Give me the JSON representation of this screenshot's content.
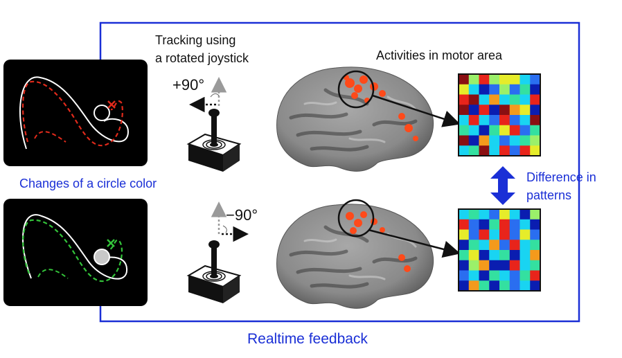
{
  "labels": {
    "tracking_line1": "Tracking using",
    "tracking_line2": "a rotated joystick",
    "activities": "Activities in motor area",
    "circle_color": "Changes of a circle color",
    "difference_line1": "Difference in",
    "difference_line2": "patterns",
    "realtime_feedback": "Realtime feedback",
    "angle_top": "+90°",
    "angle_bottom": "−90°"
  },
  "colors": {
    "feedback_loop": "#1a2fd6",
    "trace_top": "#e02a1b",
    "trace_bottom": "#33c43a",
    "cursor_top_fill": "#000000",
    "cursor_bottom_fill": "#c8c8c8"
  },
  "patterns": {
    "top": [
      "MPRPYYCB",
      "YCNBPBGN",
      "RMCOCGCR",
      "MNRNMOYN",
      "CRCBRBCM",
      "GCNGYRBG",
      "MNOCBCGP",
      "CGMCRBRY"
    ],
    "bottom": [
      "CGCBYCNP",
      "RBNGRBCN",
      "YBRCRBYB",
      "NGCOBRCG",
      "GYNCGNCO",
      "NPONNRCG",
      "BCNGCBGR",
      "NOGNGBCN"
    ],
    "palette": {
      "N": "#0a1db0",
      "B": "#2a6ef0",
      "C": "#19d4f2",
      "G": "#34e0a0",
      "Y": "#e6ec2a",
      "O": "#f49a1c",
      "R": "#e8241b",
      "M": "#8a0f12",
      "P": "#9bf06a"
    }
  }
}
